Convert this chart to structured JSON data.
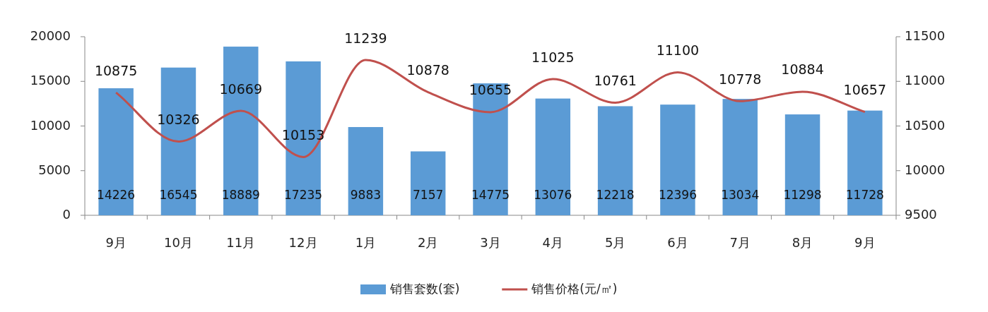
{
  "chart_data": {
    "type": "bar",
    "categories": [
      "9月",
      "10月",
      "11月",
      "12月",
      "1月",
      "2月",
      "3月",
      "4月",
      "5月",
      "6月",
      "7月",
      "8月",
      "9月"
    ],
    "series": [
      {
        "name": "销售套数(套)",
        "color": "#5b9bd5",
        "values": [
          14226,
          16545,
          18889,
          17235,
          9883,
          7157,
          14775,
          13076,
          12218,
          12396,
          13034,
          11298,
          11728
        ]
      },
      {
        "name": "销售价格(元/㎡)",
        "type": "line",
        "axis": "y2",
        "color": "#c0504d",
        "values": [
          10875,
          10326,
          10669,
          10153,
          11239,
          10878,
          10655,
          11025,
          10761,
          11100,
          10778,
          10884,
          10657
        ]
      }
    ],
    "ylim": [
      0,
      20000
    ],
    "yticks": [
      0,
      5000,
      10000,
      15000,
      20000
    ],
    "y2lim": [
      9500,
      11500
    ],
    "y2ticks": [
      9500,
      10000,
      10500,
      11000,
      11500
    ],
    "legend": "bottom",
    "data_labels": true
  }
}
